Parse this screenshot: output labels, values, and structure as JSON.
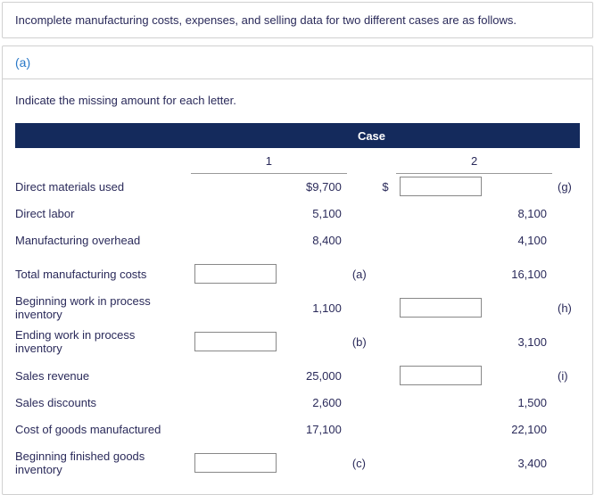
{
  "intro_text": "Incomplete manufacturing costs, expenses, and selling data for two different cases are as follows.",
  "section_label": "(a)",
  "instruction": "Indicate the missing amount for each letter.",
  "header": {
    "case": "Case",
    "col1": "1",
    "col2": "2"
  },
  "dollar_sign": "$",
  "rows": [
    {
      "label": "Direct materials used",
      "v1": "$9,700",
      "l1": "",
      "v2": "",
      "l2": "(g)",
      "in2": true
    },
    {
      "label": "Direct labor",
      "v1": "5,100",
      "l1": "",
      "v2": "8,100",
      "l2": ""
    },
    {
      "label": "Manufacturing overhead",
      "v1": "8,400",
      "l1": "",
      "v2": "4,100",
      "l2": ""
    },
    {
      "label": "Total manufacturing costs",
      "v1": "",
      "l1": "(a)",
      "v2": "16,100",
      "l2": "",
      "in1": true,
      "gap_before": true
    },
    {
      "label": "Beginning work in process inventory",
      "v1": "1,100",
      "l1": "",
      "v2": "",
      "l2": "(h)",
      "in2": true,
      "gap_before": true
    },
    {
      "label": "Ending work in process inventory",
      "v1": "",
      "l1": "(b)",
      "v2": "3,100",
      "l2": "",
      "in1": true,
      "gap_before": true
    },
    {
      "label": "Sales revenue",
      "v1": "25,000",
      "l1": "",
      "v2": "",
      "l2": "(i)",
      "in2": true,
      "gap_before": true
    },
    {
      "label": "Sales discounts",
      "v1": "2,600",
      "l1": "",
      "v2": "1,500",
      "l2": ""
    },
    {
      "label": "Cost of goods manufactured",
      "v1": "17,100",
      "l1": "",
      "v2": "22,100",
      "l2": ""
    },
    {
      "label": "Beginning finished goods inventory",
      "v1": "",
      "l1": "(c)",
      "v2": "3,400",
      "l2": "",
      "in1": true,
      "gap_before": true
    }
  ],
  "colors": {
    "header_bg": "#142a5c",
    "text": "#2a2a5a",
    "link": "#2878c8",
    "border": "#d0d0d0"
  }
}
